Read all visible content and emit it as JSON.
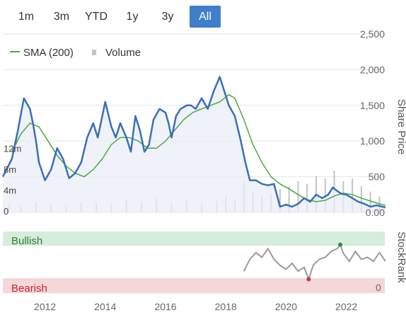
{
  "range_buttons": [
    {
      "label": "1m",
      "active": false
    },
    {
      "label": "3m",
      "active": false
    },
    {
      "label": "YTD",
      "active": false
    },
    {
      "label": "1y",
      "active": false
    },
    {
      "label": "3y",
      "active": false
    },
    {
      "label": "All",
      "active": true
    }
  ],
  "legend": {
    "sma_label": "SMA (200)",
    "volume_label": "Volume"
  },
  "y_axis_title": "Share Price",
  "rank_axis_title": "StockRank",
  "bullish_label": "Bullish",
  "bearish_label": "Bearish",
  "rank_zero_label": "0",
  "colors": {
    "price": "#3a6fb9",
    "sma": "#4aaa3e",
    "volume": "#c4c4c4",
    "rank": "#9a9a9a",
    "bullish_band": "#d6eddb",
    "bearish_band": "#f5d6d9",
    "bullish_mark": "#2e8b3a",
    "bearish_mark": "#d0334a",
    "active_button": "#3f7ec8"
  },
  "chart_data": [
    {
      "type": "line",
      "x_ticks": [
        "2012",
        "2014",
        "2016",
        "2018",
        "2020",
        "2022"
      ],
      "price_ticks": [
        "0.00",
        "500",
        "1,000",
        "1,500",
        "2,000",
        "2,500"
      ],
      "price_ylim": [
        0,
        2500
      ],
      "volume_ticks": [
        "0",
        "4m",
        "8m",
        "12m"
      ],
      "volume_ylim": [
        0,
        16
      ],
      "xlim": [
        2010.6,
        2023.3
      ],
      "series": [
        {
          "name": "Share Price",
          "x": [
            2010.6,
            2010.9,
            2011.1,
            2011.3,
            2011.5,
            2011.6,
            2011.7,
            2011.8,
            2012.0,
            2012.2,
            2012.4,
            2012.6,
            2012.8,
            2013.0,
            2013.2,
            2013.4,
            2013.6,
            2013.75,
            2013.9,
            2014.0,
            2014.2,
            2014.35,
            2014.5,
            2014.7,
            2014.85,
            2015.0,
            2015.15,
            2015.3,
            2015.45,
            2015.6,
            2015.8,
            2016.0,
            2016.1,
            2016.2,
            2016.35,
            2016.5,
            2016.7,
            2016.85,
            2017.0,
            2017.2,
            2017.4,
            2017.6,
            2017.8,
            2017.95,
            2018.1,
            2018.3,
            2018.5,
            2018.65,
            2018.8,
            2019.0,
            2019.2,
            2019.4,
            2019.6,
            2019.8,
            2020.0,
            2020.2,
            2020.4,
            2020.6,
            2020.8,
            2021.0,
            2021.2,
            2021.4,
            2021.55,
            2021.7,
            2021.85,
            2022.0,
            2022.2,
            2022.4,
            2022.6,
            2022.8,
            2023.0,
            2023.2,
            2023.3
          ],
          "y": [
            500,
            750,
            1150,
            1600,
            1450,
            1250,
            1000,
            700,
            450,
            600,
            900,
            750,
            480,
            550,
            700,
            1050,
            1250,
            1050,
            1350,
            1550,
            1200,
            1050,
            1250,
            1050,
            850,
            1350,
            1150,
            850,
            950,
            1300,
            1450,
            1400,
            1250,
            1050,
            1350,
            1450,
            1500,
            1500,
            1450,
            1600,
            1450,
            1700,
            1900,
            1700,
            1500,
            1350,
            1000,
            700,
            450,
            450,
            400,
            380,
            400,
            80,
            110,
            80,
            120,
            200,
            150,
            250,
            200,
            250,
            350,
            300,
            260,
            250,
            200,
            150,
            120,
            80,
            100,
            80,
            70
          ]
        },
        {
          "name": "SMA (200)",
          "x": [
            2010.9,
            2011.2,
            2011.5,
            2011.8,
            2012.1,
            2012.4,
            2012.7,
            2013.0,
            2013.3,
            2013.6,
            2013.9,
            2014.2,
            2014.5,
            2014.8,
            2015.1,
            2015.4,
            2015.7,
            2016.0,
            2016.3,
            2016.6,
            2016.9,
            2017.2,
            2017.5,
            2017.8,
            2018.1,
            2018.3,
            2018.6,
            2018.9,
            2019.2,
            2019.5,
            2019.8,
            2020.1,
            2020.4,
            2020.7,
            2021.0,
            2021.3,
            2021.6,
            2021.9,
            2022.2,
            2022.5,
            2022.8,
            2023.1,
            2023.3
          ],
          "y": [
            850,
            1100,
            1250,
            1200,
            1000,
            800,
            650,
            550,
            500,
            600,
            750,
            950,
            1050,
            1050,
            1000,
            900,
            900,
            1000,
            1150,
            1300,
            1400,
            1450,
            1500,
            1550,
            1650,
            1600,
            1300,
            950,
            700,
            500,
            400,
            330,
            250,
            180,
            150,
            170,
            230,
            270,
            250,
            200,
            160,
            120,
            100
          ]
        }
      ],
      "volume": {
        "name": "Volume",
        "x": [
          2010.8,
          2011.2,
          2011.7,
          2012.2,
          2012.7,
          2013.2,
          2013.7,
          2014.2,
          2014.7,
          2015.2,
          2015.7,
          2016.2,
          2016.7,
          2017.2,
          2017.7,
          2018.0,
          2018.3,
          2018.6,
          2018.9,
          2019.2,
          2019.5,
          2019.8,
          2020.1,
          2020.4,
          2020.7,
          2021.0,
          2021.3,
          2021.6,
          2021.9,
          2022.2,
          2022.5,
          2022.8,
          2023.1
        ],
        "y": [
          1.5,
          1.2,
          2.0,
          1.5,
          1.2,
          2.0,
          1.8,
          1.5,
          2.5,
          2.0,
          2.8,
          1.8,
          2.5,
          1.5,
          2.2,
          3.0,
          2.5,
          6.0,
          4.0,
          3.0,
          3.5,
          4.5,
          5.0,
          6.0,
          5.5,
          7.0,
          6.5,
          8.0,
          6.0,
          6.5,
          5.0,
          4.0,
          3.0
        ]
      }
    },
    {
      "type": "line",
      "name": "StockRank",
      "ylim": [
        0,
        100
      ],
      "x": [
        2018.6,
        2018.8,
        2019.0,
        2019.2,
        2019.4,
        2019.6,
        2019.8,
        2020.0,
        2020.2,
        2020.4,
        2020.6,
        2020.75,
        2020.9,
        2021.1,
        2021.3,
        2021.5,
        2021.7,
        2021.8,
        2021.9,
        2022.1,
        2022.3,
        2022.5,
        2022.7,
        2022.9,
        2023.1,
        2023.3
      ],
      "y": [
        25,
        55,
        72,
        60,
        82,
        55,
        40,
        30,
        45,
        25,
        35,
        5,
        40,
        55,
        60,
        75,
        82,
        92,
        70,
        50,
        75,
        55,
        60,
        50,
        72,
        50
      ]
    }
  ]
}
